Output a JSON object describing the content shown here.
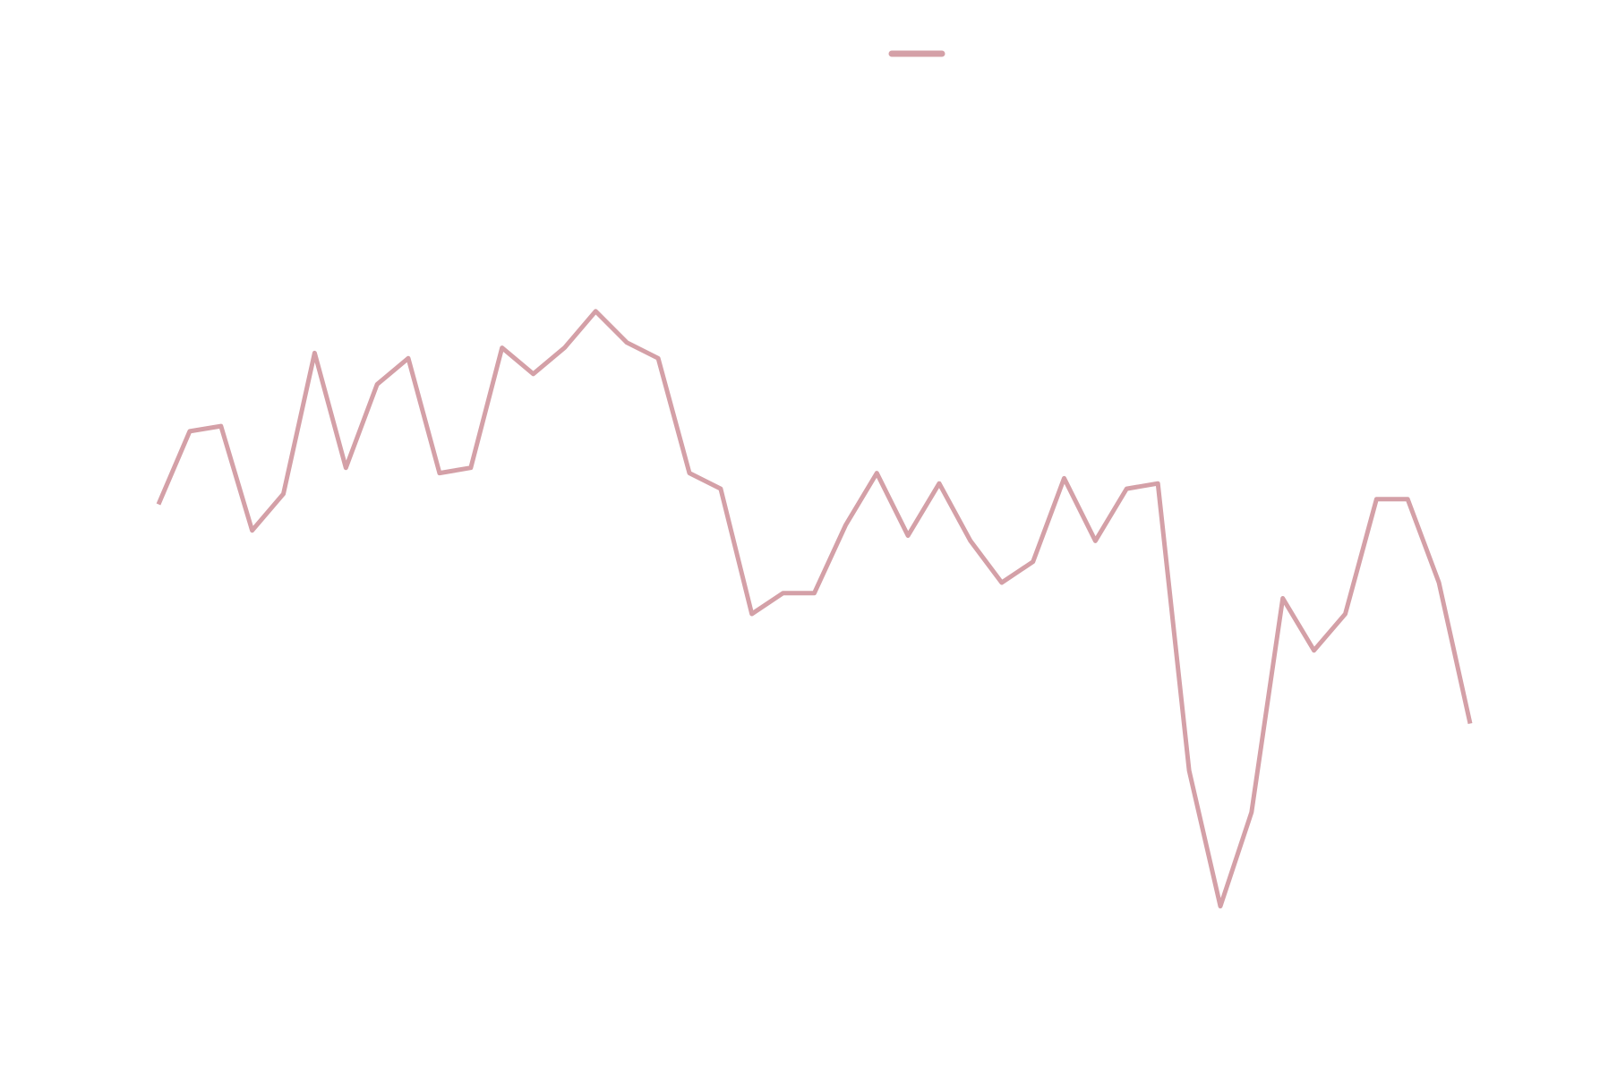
{
  "chart_data": {
    "type": "line",
    "title": "",
    "xlabel": "",
    "ylabel": "",
    "grid": false,
    "legend": "top-center",
    "series": [
      {
        "name": "",
        "color": "#d4a0a7",
        "values": [
          5.2,
          5.9,
          5.95,
          4.95,
          5.3,
          6.65,
          5.55,
          6.35,
          6.6,
          5.5,
          5.55,
          6.7,
          6.45,
          6.7,
          7.05,
          6.75,
          6.6,
          5.5,
          5.35,
          4.15,
          4.35,
          4.35,
          5.0,
          5.5,
          4.9,
          5.4,
          4.85,
          4.45,
          4.65,
          5.45,
          4.85,
          5.35,
          5.4,
          2.65,
          1.35,
          2.25,
          4.3,
          3.8,
          4.15,
          5.25,
          5.25,
          4.45,
          3.1
        ]
      }
    ],
    "ylim": [
      0,
      8
    ]
  }
}
